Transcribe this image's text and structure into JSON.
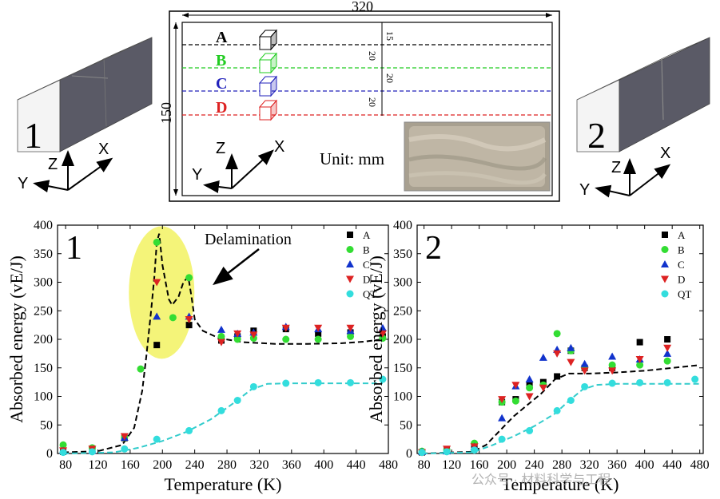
{
  "specimens": {
    "left_number": "1",
    "right_number": "2",
    "axis_x": "X",
    "axis_y": "Y",
    "axis_z": "Z"
  },
  "schematic": {
    "width_label": "320",
    "height_label": "150",
    "unit_label": "Unit: mm",
    "lines": [
      {
        "letter": "A",
        "color": "#000000"
      },
      {
        "letter": "B",
        "color": "#22cc22"
      },
      {
        "letter": "C",
        "color": "#2222bb"
      },
      {
        "letter": "D",
        "color": "#dd2222"
      }
    ],
    "spacing_labels": [
      "15",
      "20",
      "20",
      "20"
    ]
  },
  "chart_data": [
    {
      "type": "scatter",
      "panel_label": "1",
      "xlabel": "Temperature (K)",
      "ylabel": "Absorbed energy (vE/J)",
      "xlim": [
        70,
        480
      ],
      "ylim": [
        0,
        400
      ],
      "xticks": [
        80,
        120,
        160,
        200,
        240,
        280,
        320,
        360,
        400,
        440,
        480
      ],
      "yticks": [
        0,
        50,
        100,
        150,
        200,
        250,
        300,
        350,
        400
      ],
      "annotation": "Delamination",
      "legend_position": "top-right",
      "series": [
        {
          "name": "A",
          "marker": "square",
          "color": "#000000",
          "x": [
            77,
            113,
            153,
            193,
            233,
            273,
            293,
            313,
            353,
            393,
            433,
            473
          ],
          "y": [
            3,
            6,
            27,
            190,
            225,
            198,
            205,
            215,
            218,
            210,
            212,
            205
          ]
        },
        {
          "name": "B",
          "marker": "circle",
          "color": "#33dd33",
          "x": [
            77,
            113,
            153,
            173,
            193,
            213,
            233,
            273,
            293,
            313,
            353,
            393,
            433,
            473
          ],
          "y": [
            15,
            10,
            28,
            148,
            370,
            238,
            308,
            205,
            200,
            202,
            200,
            200,
            205,
            202
          ]
        },
        {
          "name": "C",
          "marker": "triangle-up",
          "color": "#1133cc",
          "x": [
            77,
            113,
            153,
            193,
            233,
            273,
            293,
            313,
            353,
            393,
            433,
            473
          ],
          "y": [
            5,
            5,
            28,
            240,
            240,
            217,
            210,
            212,
            222,
            218,
            215,
            220
          ]
        },
        {
          "name": "D",
          "marker": "triangle-down",
          "color": "#dd2222",
          "x": [
            77,
            113,
            153,
            193,
            233,
            273,
            293,
            313,
            353,
            393,
            433,
            473
          ],
          "y": [
            5,
            8,
            30,
            300,
            235,
            195,
            210,
            208,
            220,
            220,
            220,
            210
          ]
        },
        {
          "name": "QT",
          "marker": "circle",
          "color": "#33dddd",
          "x": [
            77,
            113,
            153,
            193,
            233,
            273,
            293,
            313,
            353,
            393,
            433,
            473
          ],
          "y": [
            2,
            3,
            8,
            25,
            40,
            75,
            93,
            117,
            123,
            124,
            124,
            130
          ]
        }
      ],
      "fit_lines": [
        {
          "color": "#000000",
          "x": [
            77,
            120,
            150,
            165,
            175,
            180,
            186,
            190,
            193,
            196,
            200,
            208,
            212,
            220,
            226,
            232,
            236,
            240,
            250,
            270,
            300,
            340,
            380,
            420,
            450,
            473
          ],
          "y": [
            2,
            4,
            15,
            45,
            110,
            170,
            250,
            310,
            370,
            385,
            330,
            270,
            260,
            275,
            300,
            310,
            275,
            235,
            215,
            202,
            195,
            192,
            192,
            193,
            196,
            200
          ]
        },
        {
          "color": "#33cccc",
          "x": [
            77,
            140,
            170,
            200,
            230,
            260,
            290,
            310,
            330,
            360,
            400,
            440,
            473
          ],
          "y": [
            0,
            2,
            10,
            22,
            38,
            60,
            90,
            112,
            122,
            123,
            123,
            123,
            123
          ]
        }
      ]
    },
    {
      "type": "scatter",
      "panel_label": "2",
      "xlabel": "Temperature (K)",
      "ylabel": "Absorbed energy (vE/J)",
      "xlim": [
        70,
        485
      ],
      "ylim": [
        0,
        400
      ],
      "xticks": [
        80,
        120,
        160,
        200,
        240,
        280,
        320,
        360,
        400,
        440,
        480
      ],
      "yticks": [
        0,
        50,
        100,
        150,
        200,
        250,
        300,
        350,
        400
      ],
      "legend_position": "top-right",
      "series": [
        {
          "name": "A",
          "marker": "square",
          "color": "#000000",
          "x": [
            77,
            113,
            153,
            193,
            213,
            233,
            253,
            273,
            293,
            313,
            353,
            393,
            433
          ],
          "y": [
            2,
            5,
            15,
            90,
            95,
            120,
            125,
            135,
            180,
            150,
            150,
            195,
            200
          ]
        },
        {
          "name": "B",
          "marker": "circle",
          "color": "#33dd33",
          "x": [
            77,
            113,
            153,
            193,
            213,
            233,
            253,
            273,
            293,
            313,
            353,
            393,
            433
          ],
          "y": [
            4,
            6,
            18,
            90,
            92,
            115,
            120,
            210,
            180,
            150,
            155,
            155,
            162
          ]
        },
        {
          "name": "C",
          "marker": "triangle-up",
          "color": "#1133cc",
          "x": [
            77,
            113,
            153,
            193,
            213,
            233,
            253,
            273,
            293,
            313,
            353,
            393,
            433
          ],
          "y": [
            3,
            4,
            12,
            62,
            118,
            130,
            168,
            182,
            185,
            157,
            170,
            165,
            175
          ]
        },
        {
          "name": "D",
          "marker": "triangle-down",
          "color": "#dd2222",
          "x": [
            77,
            113,
            153,
            193,
            213,
            233,
            253,
            273,
            293,
            313,
            353,
            393,
            433
          ],
          "y": [
            2,
            8,
            12,
            95,
            120,
            100,
            115,
            175,
            160,
            145,
            145,
            165,
            185
          ]
        },
        {
          "name": "QT",
          "marker": "circle",
          "color": "#33dddd",
          "x": [
            77,
            113,
            153,
            193,
            233,
            273,
            293,
            313,
            353,
            393,
            433,
            473
          ],
          "y": [
            2,
            3,
            6,
            25,
            40,
            75,
            93,
            117,
            123,
            124,
            124,
            130
          ]
        }
      ],
      "fit_lines": [
        {
          "color": "#000000",
          "x": [
            77,
            150,
            170,
            190,
            210,
            230,
            250,
            270,
            290,
            320,
            360,
            400,
            440,
            480
          ],
          "y": [
            0,
            3,
            15,
            40,
            65,
            85,
            105,
            130,
            140,
            140,
            142,
            145,
            150,
            155
          ]
        },
        {
          "color": "#33cccc",
          "x": [
            77,
            150,
            180,
            210,
            240,
            270,
            290,
            310,
            330,
            360,
            400,
            440,
            480
          ],
          "y": [
            0,
            2,
            15,
            30,
            48,
            70,
            92,
            112,
            120,
            122,
            122,
            122,
            122
          ]
        }
      ]
    }
  ],
  "watermark": "公众号 · 材料科学与工程"
}
